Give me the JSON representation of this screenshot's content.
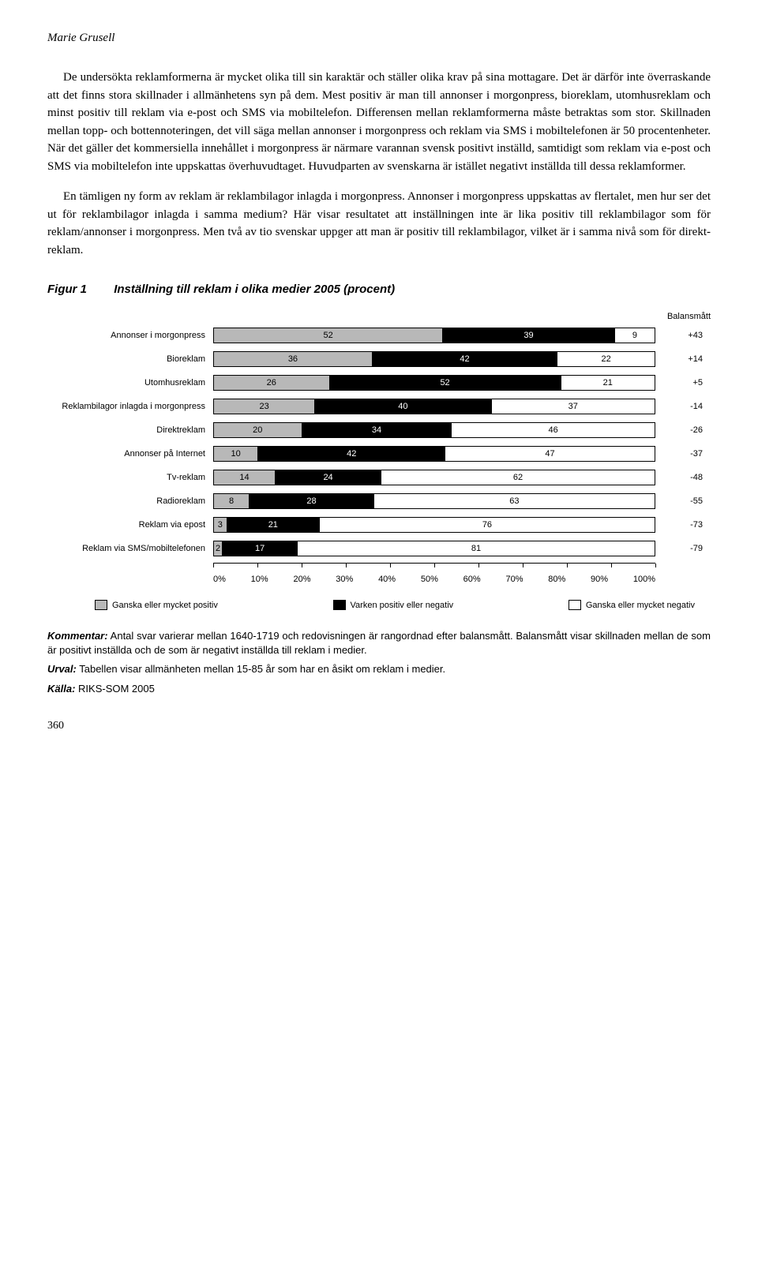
{
  "author": "Marie Grusell",
  "paragraph1": "De undersökta reklamformerna är mycket olika till sin karaktär och ställer olika krav på sina mottagare. Det är därför inte överraskande att det finns stora skillnader i allmänhetens syn på dem. Mest positiv är man till annonser i morgonpress, bio­reklam, utomhusreklam och minst positiv till reklam via e-post och SMS via mo­biltelefon. Differensen mellan reklamformerna måste betraktas som stor. Skillnaden mellan topp- och bottennoteringen, det vill säga mellan annonser i morgonpress och reklam via SMS i mobiltelefonen är 50 procentenheter. När det gäller det kom­mersiella innehållet i morgonpress är närmare varannan svensk positivt inställd, samtidigt som reklam via e-post och SMS via mobiltelefon inte uppskattas överhu­vudtaget. Huvudparten av svenskarna är istället negativt inställda till dessa reklam­former.",
  "paragraph2": "En tämligen ny form av reklam är reklambilagor inlagda i morgonpress. Annon­ser i morgonpress uppskattas av flertalet, men hur ser det ut för reklambilagor in­lagda i samma medium? Här visar resultatet att inställningen inte är lika positiv till reklambilagor som för reklam/annonser i morgonpress. Men två av tio svenskar uppger att man är positiv till reklambilagor, vilket är i samma nivå som för direkt­reklam.",
  "figure": {
    "label": "Figur 1",
    "title": "Inställning till reklam i olika medier 2005 (procent)",
    "balans_header": "Balansmått",
    "rows": [
      {
        "label": "Annonser i morgonpress",
        "pos": 52,
        "neu": 39,
        "neg": 9,
        "balans": "+43"
      },
      {
        "label": "Bioreklam",
        "pos": 36,
        "neu": 42,
        "neg": 22,
        "balans": "+14"
      },
      {
        "label": "Utomhusreklam",
        "pos": 26,
        "neu": 52,
        "neg": 21,
        "balans": "+5"
      },
      {
        "label": "Reklambilagor inlagda i morgonpress",
        "pos": 23,
        "neu": 40,
        "neg": 37,
        "balans": "-14"
      },
      {
        "label": "Direktreklam",
        "pos": 20,
        "neu": 34,
        "neg": 46,
        "balans": "-26"
      },
      {
        "label": "Annonser på Internet",
        "pos": 10,
        "neu": 42,
        "neg": 47,
        "balans": "-37"
      },
      {
        "label": "Tv-reklam",
        "pos": 14,
        "neu": 24,
        "neg": 62,
        "balans": "-48"
      },
      {
        "label": "Radioreklam",
        "pos": 8,
        "neu": 28,
        "neg": 63,
        "balans": "-55"
      },
      {
        "label": "Reklam via epost",
        "pos": 3,
        "neu": 21,
        "neg": 76,
        "balans": "-73"
      },
      {
        "label": "Reklam via SMS/mobiltelefonen",
        "pos": 2,
        "neu": 17,
        "neg": 81,
        "balans": "-79"
      }
    ],
    "xticks": [
      "0%",
      "10%",
      "20%",
      "30%",
      "40%",
      "50%",
      "60%",
      "70%",
      "80%",
      "90%",
      "100%"
    ],
    "legend": {
      "pos": "Ganska eller mycket positiv",
      "neu": "Varken positiv eller negativ",
      "neg": "Ganska eller mycket negativ"
    },
    "colors": {
      "pos": "#b8b8b8",
      "neu": "#000000",
      "neg": "#ffffff"
    }
  },
  "commentary": {
    "kommentar_label": "Kommentar:",
    "kommentar_text": " Antal svar varierar mellan 1640-1719 och redovisningen är rangordnad efter balans­mått. Balansmått visar skillnaden mellan de som är positivt inställda och de som är negativt inställda till reklam i medier.",
    "urval_label": "Urval:",
    "urval_text": " Tabellen visar allmänheten mellan 15-85 år som har en åsikt om reklam i medier.",
    "kalla_label": "Källa:",
    "kalla_text": " RIKS-SOM 2005"
  },
  "page_number": "360"
}
